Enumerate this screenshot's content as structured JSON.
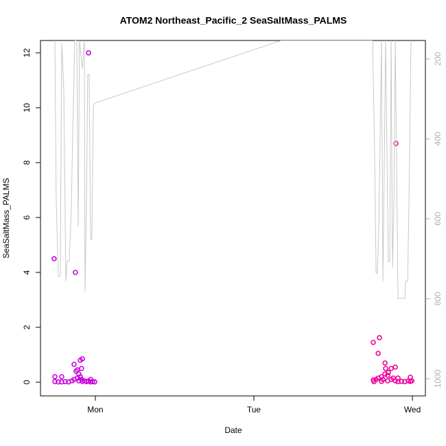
{
  "chart_data": {
    "type": "scatter",
    "title": "ATOM2 Northeast_Pacific_2 SeaSaltMass_PALMS",
    "x_label": "Date",
    "y_label": "SeaSaltMass_PALMS",
    "xlim": [
      -0.346,
      2.082
    ],
    "xticks": [
      {
        "value": 0,
        "label": "Mon"
      },
      {
        "value": 1,
        "label": "Tue"
      },
      {
        "value": 2,
        "label": "Wed"
      }
    ],
    "ylim": [
      -0.5,
      12.45
    ],
    "yticks": [
      0,
      2,
      4,
      6,
      8,
      10,
      12
    ],
    "y2lim": [
      1043,
      154
    ],
    "y2ticks": [
      200,
      400,
      600,
      800,
      1000
    ],
    "y2_color": "#b0b0b0",
    "series": [
      {
        "color": "#cc00dd",
        "x": [
          -0.26,
          -0.255,
          -0.255,
          -0.234,
          -0.212,
          -0.212,
          -0.19,
          -0.169,
          -0.147,
          -0.134,
          -0.134,
          -0.126,
          -0.121,
          -0.113,
          -0.113,
          -0.104,
          -0.104,
          -0.095,
          -0.095,
          -0.087,
          -0.087,
          -0.082,
          -0.082,
          -0.069,
          -0.056,
          -0.043,
          -0.043,
          -0.03,
          -0.03,
          -0.017,
          -0.004
        ],
        "values": [
          4.5,
          0.2,
          0.02,
          0.01,
          0.2,
          0.01,
          0.02,
          0.01,
          0.05,
          0.65,
          0.1,
          4.0,
          0.4,
          0.45,
          0.15,
          0.3,
          0.05,
          0.8,
          0.2,
          0.5,
          0.1,
          0.85,
          0.03,
          0.05,
          0.02,
          12.0,
          0.04,
          0.1,
          0.01,
          0.02,
          0.01
        ]
      },
      {
        "color": "#ee0099",
        "x": [
          1.753,
          1.753,
          1.758,
          1.771,
          1.784,
          1.784,
          1.792,
          1.805,
          1.805,
          1.814,
          1.827,
          1.827,
          1.831,
          1.844,
          1.844,
          1.848,
          1.866,
          1.866,
          1.879,
          1.892,
          1.892,
          1.896,
          1.909,
          1.909,
          1.931,
          1.952,
          1.974,
          1.987,
          1.987,
          1.996
        ],
        "values": [
          1.45,
          0.08,
          0.02,
          0.1,
          1.05,
          0.15,
          1.62,
          0.2,
          0.03,
          0.1,
          0.7,
          0.3,
          0.5,
          0.25,
          0.05,
          0.35,
          0.5,
          0.1,
          0.15,
          0.55,
          0.05,
          8.7,
          0.15,
          0.02,
          0.03,
          0.02,
          0.05,
          0.18,
          0.03,
          0.05
        ]
      },
      {
        "type": "line",
        "axis": "y2",
        "color": "#c8c8c8",
        "x": [
          -0.255,
          -0.247,
          -0.234,
          -0.221,
          -0.212,
          -0.199,
          -0.186,
          -0.177,
          -0.165,
          -0.152,
          -0.143,
          -0.13,
          -0.117,
          -0.108,
          -0.1,
          -0.087,
          -0.082,
          -0.069,
          -0.065,
          -0.056,
          -0.048,
          -0.039,
          -0.03,
          -0.022,
          -0.013,
          -0.009,
          0,
          1.173,
          1.749,
          1.762,
          1.771,
          1.779,
          1.788,
          1.805,
          1.814,
          1.823,
          1.831,
          1.848,
          1.857,
          1.866,
          1.874,
          1.883,
          1.892,
          1.909,
          1.952,
          1.957,
          1.97,
          1.978,
          1.991
        ],
        "values": [
          154,
          550,
          744,
          744,
          161,
          276,
          756,
          705,
          705,
          585,
          396,
          154,
          154,
          619,
          154,
          207,
          224,
          154,
          782,
          567,
          239,
          239,
          651,
          651,
          327,
          313,
          310,
          154,
          154,
          447,
          736,
          736,
          619,
          154,
          756,
          447,
          154,
          708,
          708,
          154,
          722,
          567,
          154,
          799,
          799,
          756,
          756,
          567,
          154
        ]
      }
    ]
  }
}
